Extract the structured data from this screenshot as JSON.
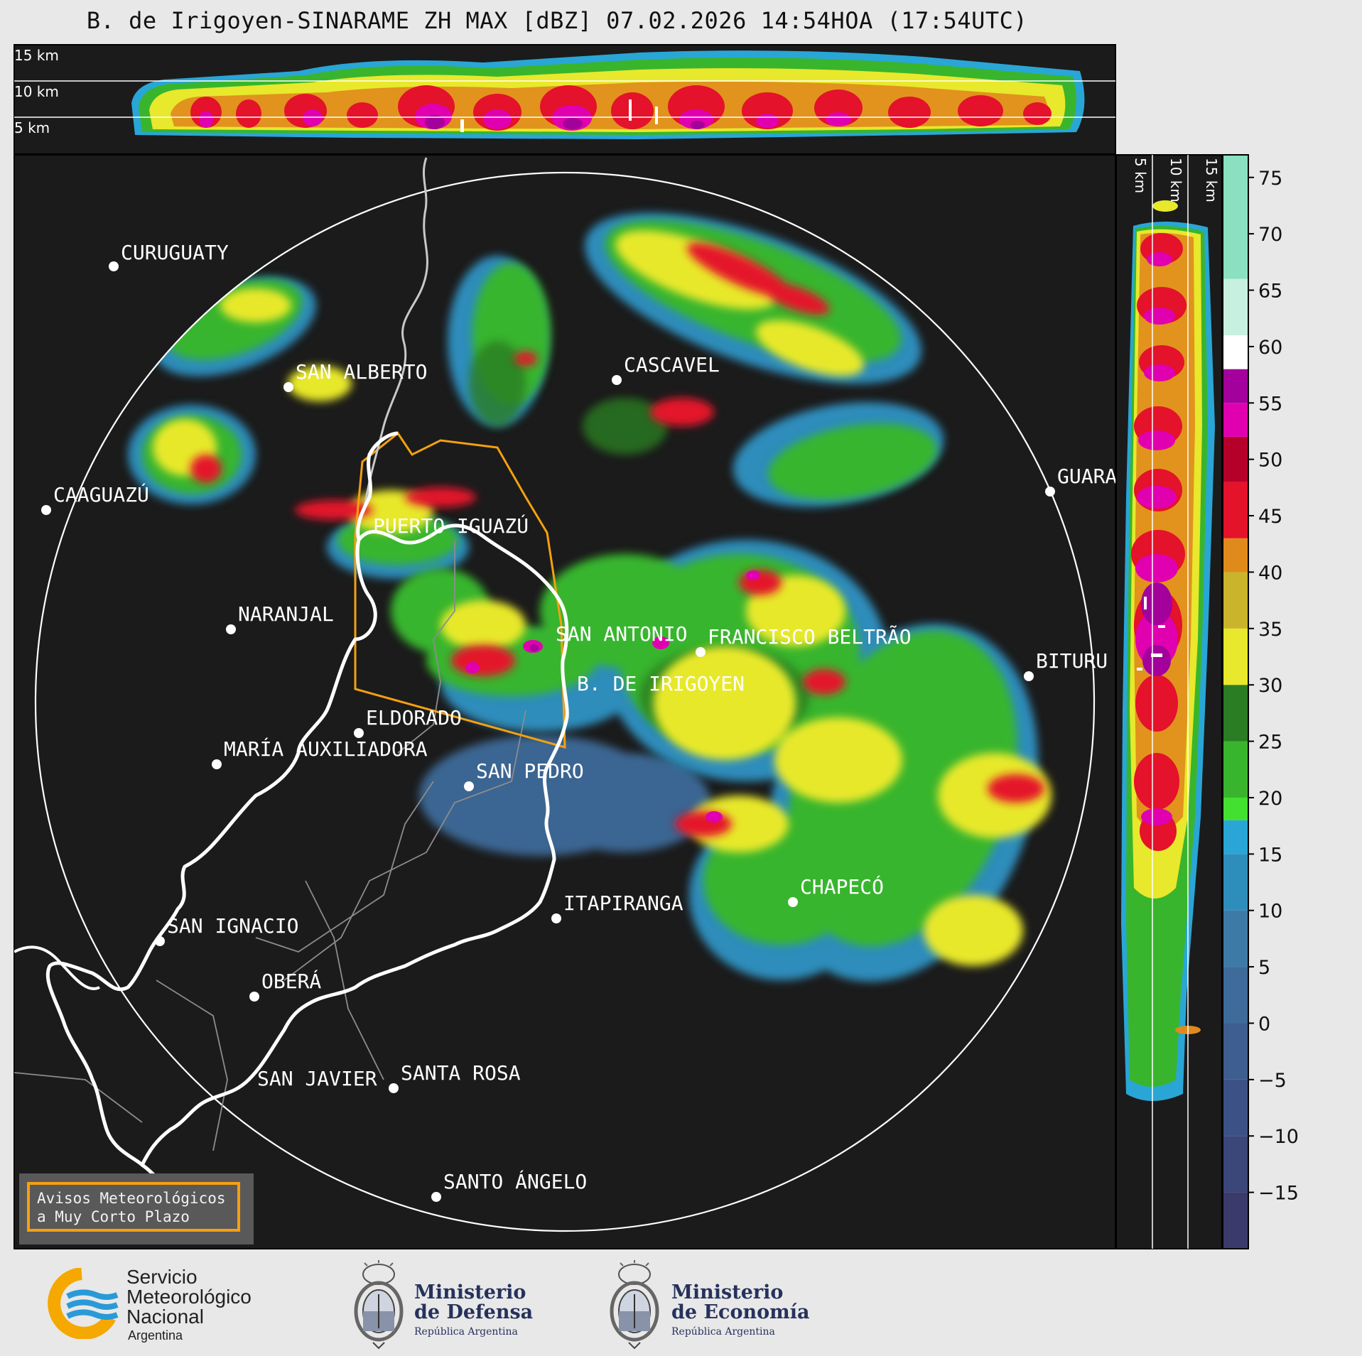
{
  "title": "B. de Irigoyen-SINARAME ZH MAX [dBZ] 07.02.2026 14:54HOA (17:54UTC)",
  "top_panel": {
    "altitude_labels": [
      "15 km",
      "10 km",
      "5 km"
    ]
  },
  "side_panel": {
    "altitude_labels": [
      "5 km",
      "10 km",
      "15 km"
    ]
  },
  "colorbar": {
    "unit": "dBZ",
    "ticks": [
      "75",
      "70",
      "65",
      "60",
      "55",
      "50",
      "45",
      "40",
      "35",
      "30",
      "25",
      "20",
      "15",
      "10",
      "5",
      "0",
      "−5",
      "−10",
      "−15"
    ],
    "tick_values": [
      75,
      70,
      65,
      60,
      55,
      50,
      45,
      40,
      35,
      30,
      25,
      20,
      15,
      10,
      5,
      0,
      -5,
      -10,
      -15
    ],
    "range": [
      -20,
      77
    ],
    "colors": [
      {
        "from": -20,
        "to": -15,
        "color": "#3a3b6a"
      },
      {
        "from": -15,
        "to": -10,
        "color": "#3b4679"
      },
      {
        "from": -10,
        "to": -5,
        "color": "#3c5286"
      },
      {
        "from": -5,
        "to": 0,
        "color": "#3d5e8f"
      },
      {
        "from": 0,
        "to": 5,
        "color": "#3e6b99"
      },
      {
        "from": 5,
        "to": 10,
        "color": "#3d7aa6"
      },
      {
        "from": 10,
        "to": 15,
        "color": "#2f8dbb"
      },
      {
        "from": 15,
        "to": 18,
        "color": "#29a6d6"
      },
      {
        "from": 18,
        "to": 20,
        "color": "#44e02f"
      },
      {
        "from": 20,
        "to": 25,
        "color": "#39b52d"
      },
      {
        "from": 25,
        "to": 30,
        "color": "#2a7d24"
      },
      {
        "from": 30,
        "to": 35,
        "color": "#e8e82c"
      },
      {
        "from": 35,
        "to": 40,
        "color": "#c9b42c"
      },
      {
        "from": 40,
        "to": 43,
        "color": "#e08a1c"
      },
      {
        "from": 43,
        "to": 48,
        "color": "#e4122a"
      },
      {
        "from": 48,
        "to": 52,
        "color": "#b5002a"
      },
      {
        "from": 52,
        "to": 55,
        "color": "#e000b0"
      },
      {
        "from": 55,
        "to": 58,
        "color": "#a3009c"
      },
      {
        "from": 58,
        "to": 61,
        "color": "#ffffff"
      },
      {
        "from": 61,
        "to": 66,
        "color": "#c8f0e0"
      },
      {
        "from": 66,
        "to": 77,
        "color": "#8ae0c0"
      }
    ]
  },
  "cities": [
    {
      "name": "CURUGUATY"
    },
    {
      "name": "SAN ALBERTO"
    },
    {
      "name": "CASCAVEL"
    },
    {
      "name": "CAAGUAZÚ"
    },
    {
      "name": "GUARA"
    },
    {
      "name": "PUERTO IGUAZÚ"
    },
    {
      "name": "NARANJAL"
    },
    {
      "name": "SAN ANTONIO"
    },
    {
      "name": "FRANCISCO BELTRÃO"
    },
    {
      "name": "BITURU"
    },
    {
      "name": "B. DE IRIGOYEN"
    },
    {
      "name": "ELDORADO"
    },
    {
      "name": "MARÍA AUXILIADORA"
    },
    {
      "name": "SAN PEDRO"
    },
    {
      "name": "ITAPIRANGA"
    },
    {
      "name": "CHAPECÓ"
    },
    {
      "name": "SAN IGNACIO"
    },
    {
      "name": "OBERÁ"
    },
    {
      "name": "SAN JAVIER"
    },
    {
      "name": "SANTA ROSA"
    },
    {
      "name": "SANTO ÁNGELO"
    }
  ],
  "warning_box": {
    "line1": "Avisos Meteorológicos",
    "line2": "a Muy Corto Plazo"
  },
  "footer": {
    "smn": {
      "line1": "Servicio",
      "line2": "Meteorológico",
      "line3": "Nacional",
      "sub": "Argentina"
    },
    "defensa": {
      "line1": "Ministerio",
      "line2": "de Defensa",
      "sub": "República Argentina"
    },
    "economia": {
      "line1": "Ministerio",
      "line2": "de Economía",
      "sub": "República Argentina"
    }
  },
  "colors": {
    "background": "#e8e8e8",
    "map_bg": "#1b1b1b",
    "warning_border": "#f5a011",
    "smn_yellow": "#f5a800",
    "smn_blue": "#2a9ad6"
  }
}
